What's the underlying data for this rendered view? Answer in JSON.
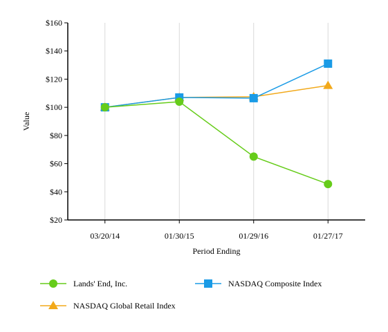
{
  "chart_data": {
    "type": "line",
    "title": "",
    "xlabel": "Period Ending",
    "ylabel": "Value",
    "categories": [
      "03/20/14",
      "01/30/15",
      "01/29/16",
      "01/27/17"
    ],
    "ylim": [
      20,
      160
    ],
    "y_ticks": [
      20,
      40,
      60,
      80,
      100,
      120,
      140,
      160
    ],
    "y_tick_labels": [
      "$20",
      "$40",
      "$60",
      "$80",
      "$100",
      "$120",
      "$140",
      "$160"
    ],
    "grid": "vertical",
    "legend_position": "bottom",
    "series": [
      {
        "name": "Lands' End, Inc.",
        "values": [
          100,
          104,
          65,
          45.5
        ],
        "color": "#66cc1a",
        "marker": "circle"
      },
      {
        "name": "NASDAQ Composite Index",
        "values": [
          100,
          107,
          106.5,
          131
        ],
        "color": "#1a9be6",
        "marker": "square"
      },
      {
        "name": "NASDAQ Global Retail Index",
        "values": [
          100,
          107,
          107.5,
          115.5
        ],
        "color": "#f2a91a",
        "marker": "triangle"
      }
    ]
  }
}
